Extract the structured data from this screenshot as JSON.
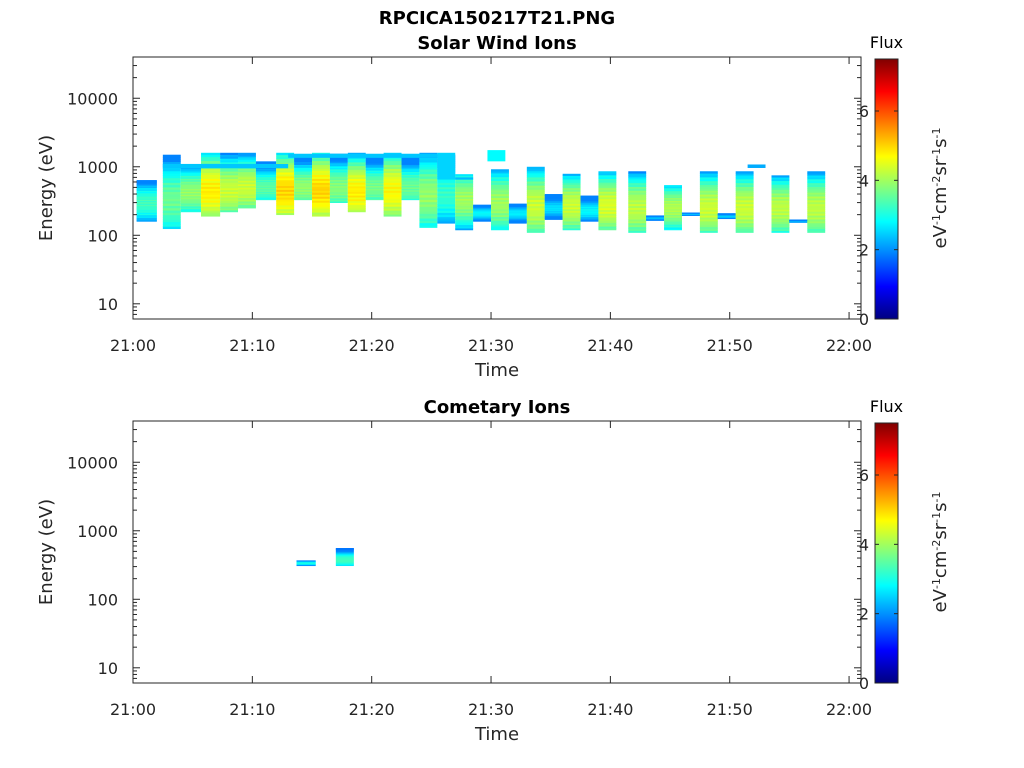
{
  "figure_title": "RPCICA150217T21.PNG",
  "chart_data": [
    {
      "type": "heatmap",
      "title": "Solar Wind Ions",
      "xlabel": "Time",
      "ylabel": "Energy (eV)",
      "x_ticks": [
        "21:00",
        "21:10",
        "21:20",
        "21:30",
        "21:40",
        "21:50",
        "22:00"
      ],
      "xlim_minutes": [
        0,
        61
      ],
      "y_scale": "log",
      "ylim": [
        6,
        40000
      ],
      "y_ticks": [
        10,
        100,
        1000,
        10000
      ],
      "y_tick_labels": [
        "10",
        "100",
        "1000",
        "10000"
      ],
      "colorbar": {
        "title": "Flux",
        "label": "eV-1cm-2sr-1s-1",
        "range": [
          0,
          7.5
        ],
        "ticks": [
          "0",
          "2",
          "4",
          "6"
        ]
      },
      "grid": false,
      "scans": [
        {
          "t0": 0.3,
          "t1": 2.0,
          "emin": 160,
          "emax": 640,
          "peak": 3.3,
          "epeak": 300
        },
        {
          "t0": 2.5,
          "t1": 4.0,
          "emin": 125,
          "emax": 1500,
          "peak": 3.6,
          "epeak": 330
        },
        {
          "t0": 4.0,
          "t1": 5.7,
          "emin": 220,
          "emax": 1050,
          "peak": 3.9,
          "epeak": 420
        },
        {
          "t0": 5.7,
          "t1": 7.3,
          "emin": 190,
          "emax": 1600,
          "peak": 4.8,
          "epeak": 450
        },
        {
          "t0": 7.3,
          "t1": 8.8,
          "emin": 220,
          "emax": 1600,
          "peak": 4.3,
          "epeak": 450
        },
        {
          "t0": 8.8,
          "t1": 10.3,
          "emin": 250,
          "emax": 1600,
          "peak": 4.3,
          "epeak": 500
        },
        {
          "t0": 10.3,
          "t1": 12.0,
          "emin": 330,
          "emax": 1200,
          "peak": 3.5,
          "epeak": 500
        },
        {
          "t0": 12.0,
          "t1": 13.5,
          "emin": 200,
          "emax": 1600,
          "peak": 5.0,
          "epeak": 450
        },
        {
          "t0": 13.5,
          "t1": 15.0,
          "emin": 330,
          "emax": 1500,
          "peak": 3.9,
          "epeak": 500
        },
        {
          "t0": 15.0,
          "t1": 16.5,
          "emin": 190,
          "emax": 1600,
          "peak": 5.0,
          "epeak": 450
        },
        {
          "t0": 16.5,
          "t1": 18.0,
          "emin": 300,
          "emax": 1550,
          "peak": 3.8,
          "epeak": 500
        },
        {
          "t0": 18.0,
          "t1": 19.5,
          "emin": 220,
          "emax": 1600,
          "peak": 4.8,
          "epeak": 430
        },
        {
          "t0": 19.5,
          "t1": 21.0,
          "emin": 330,
          "emax": 1500,
          "peak": 3.7,
          "epeak": 500
        },
        {
          "t0": 21.0,
          "t1": 22.5,
          "emin": 190,
          "emax": 1600,
          "peak": 4.7,
          "epeak": 450
        },
        {
          "t0": 22.5,
          "t1": 24.0,
          "emin": 330,
          "emax": 1500,
          "peak": 3.6,
          "epeak": 500
        },
        {
          "t0": 24.0,
          "t1": 25.5,
          "emin": 130,
          "emax": 1600,
          "peak": 3.9,
          "epeak": 380
        },
        {
          "t0": 25.5,
          "t1": 27.0,
          "emin": 150,
          "emax": 1500,
          "peak": 3.2,
          "epeak": 400
        },
        {
          "t0": 27.0,
          "t1": 28.5,
          "emin": 120,
          "emax": 780,
          "peak": 4.0,
          "epeak": 330
        },
        {
          "t0": 28.5,
          "t1": 30.0,
          "emin": 160,
          "emax": 280,
          "peak": 2.8,
          "epeak": 210
        },
        {
          "t0": 30.0,
          "t1": 31.5,
          "emin": 120,
          "emax": 920,
          "peak": 4.0,
          "epeak": 300
        },
        {
          "t0": 31.5,
          "t1": 33.0,
          "emin": 150,
          "emax": 290,
          "peak": 2.7,
          "epeak": 210
        },
        {
          "t0": 33.0,
          "t1": 34.5,
          "emin": 110,
          "emax": 1000,
          "peak": 4.3,
          "epeak": 270
        },
        {
          "t0": 34.5,
          "t1": 36.0,
          "emin": 170,
          "emax": 400,
          "peak": 2.6,
          "epeak": 250
        },
        {
          "t0": 36.0,
          "t1": 37.5,
          "emin": 120,
          "emax": 790,
          "peak": 4.3,
          "epeak": 270
        },
        {
          "t0": 37.5,
          "t1": 39.0,
          "emin": 160,
          "emax": 380,
          "peak": 2.8,
          "epeak": 230
        },
        {
          "t0": 39.0,
          "t1": 40.5,
          "emin": 120,
          "emax": 860,
          "peak": 4.4,
          "epeak": 270
        },
        {
          "t0": 41.5,
          "t1": 43.0,
          "emin": 110,
          "emax": 860,
          "peak": 4.2,
          "epeak": 250
        },
        {
          "t0": 43.0,
          "t1": 44.5,
          "emin": 165,
          "emax": 195,
          "peak": 2.4,
          "epeak": 180
        },
        {
          "t0": 44.5,
          "t1": 46.0,
          "emin": 120,
          "emax": 540,
          "peak": 4.1,
          "epeak": 250
        },
        {
          "t0": 46.0,
          "t1": 47.5,
          "emin": 195,
          "emax": 215,
          "peak": 2.4,
          "epeak": 205
        },
        {
          "t0": 47.5,
          "t1": 49.0,
          "emin": 110,
          "emax": 860,
          "peak": 4.3,
          "epeak": 250
        },
        {
          "t0": 49.0,
          "t1": 50.5,
          "emin": 175,
          "emax": 210,
          "peak": 2.5,
          "epeak": 190
        },
        {
          "t0": 50.5,
          "t1": 52.0,
          "emin": 110,
          "emax": 860,
          "peak": 4.3,
          "epeak": 250
        },
        {
          "t0": 53.5,
          "t1": 55.0,
          "emin": 110,
          "emax": 750,
          "peak": 4.2,
          "epeak": 250
        },
        {
          "t0": 55.0,
          "t1": 56.5,
          "emin": 155,
          "emax": 170,
          "peak": 2.4,
          "epeak": 160
        },
        {
          "t0": 56.5,
          "t1": 58.0,
          "emin": 110,
          "emax": 860,
          "peak": 4.2,
          "epeak": 250
        }
      ],
      "streaks": [
        {
          "t0": 2.5,
          "t1": 13.0,
          "e0": 950,
          "e1": 1100,
          "level": 2.4
        },
        {
          "t0": 13.0,
          "t1": 25.5,
          "e0": 1350,
          "e1": 1550,
          "level": 2.4
        },
        {
          "t0": 25.5,
          "t1": 27.0,
          "e0": 650,
          "e1": 1600,
          "level": 2.5
        },
        {
          "t0": 27.0,
          "t1": 28.5,
          "e0": 650,
          "e1": 700,
          "level": 2.3
        },
        {
          "t0": 29.7,
          "t1": 31.2,
          "e0": 1200,
          "e1": 1750,
          "level": 2.8
        },
        {
          "t0": 51.5,
          "t1": 53.0,
          "e0": 960,
          "e1": 1080,
          "level": 2.2
        }
      ]
    },
    {
      "type": "heatmap",
      "title": "Cometary Ions",
      "xlabel": "Time",
      "ylabel": "Energy (eV)",
      "x_ticks": [
        "21:00",
        "21:10",
        "21:20",
        "21:30",
        "21:40",
        "21:50",
        "22:00"
      ],
      "xlim_minutes": [
        0,
        61
      ],
      "y_scale": "log",
      "ylim": [
        6,
        40000
      ],
      "y_ticks": [
        10,
        100,
        1000,
        10000
      ],
      "y_tick_labels": [
        "10",
        "100",
        "1000",
        "10000"
      ],
      "colorbar": {
        "title": "Flux",
        "label": "eV-1cm-2sr-1s-1",
        "range": [
          0,
          7.5
        ],
        "ticks": [
          "0",
          "2",
          "4",
          "6"
        ]
      },
      "grid": false,
      "scans": [
        {
          "t0": 13.7,
          "t1": 15.3,
          "emin": 310,
          "emax": 370,
          "peak": 3.0,
          "epeak": 340
        },
        {
          "t0": 17.0,
          "t1": 18.5,
          "emin": 310,
          "emax": 560,
          "peak": 3.3,
          "epeak": 380
        }
      ],
      "streaks": [
        {
          "t0": 17.0,
          "t1": 18.5,
          "e0": 520,
          "e1": 560,
          "level": 1.8
        }
      ]
    }
  ]
}
